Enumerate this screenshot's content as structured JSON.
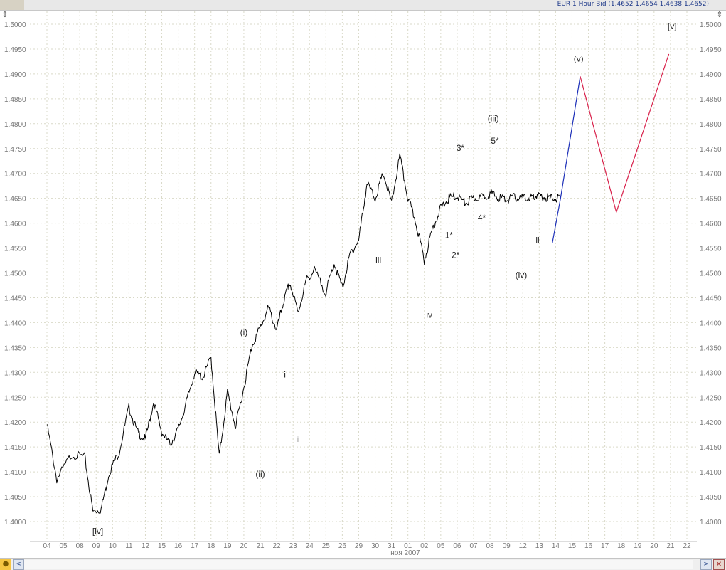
{
  "header": {
    "instrument_label": "EUR 1 Hour Bid (1.4652 1.4654 1.4638 1.4652)"
  },
  "colors": {
    "price": "#000000",
    "projection_blue": "#1c2fb8",
    "projection_red": "#d8204a",
    "grid": "#d9d9c8",
    "axis_text": "#777777"
  },
  "chart_data": {
    "type": "line",
    "title": "EUR 1 Hour Bid",
    "ylim": [
      1.4,
      1.5
    ],
    "y_ticks": [
      "1.5000",
      "1.4950",
      "1.4900",
      "1.4850",
      "1.4800",
      "1.4750",
      "1.4700",
      "1.4650",
      "1.4600",
      "1.4550",
      "1.4500",
      "1.4450",
      "1.4400",
      "1.4350",
      "1.4300",
      "1.4250",
      "1.4200",
      "1.4150",
      "1.4100",
      "1.4050",
      "1.4000"
    ],
    "x_ticks": [
      "04",
      "05",
      "08",
      "09",
      "10",
      "11",
      "12",
      "15",
      "16",
      "17",
      "18",
      "19",
      "20",
      "21",
      "22",
      "23",
      "24",
      "25",
      "26",
      "29",
      "30",
      "31",
      "01",
      "02",
      "05",
      "06",
      "07",
      "08",
      "09",
      "12",
      "13",
      "14",
      "15",
      "16",
      "17",
      "18",
      "19",
      "20",
      "21",
      "22"
    ],
    "x_sublabel": "ноя 2007",
    "grid": true,
    "price_series": {
      "name": "EUR",
      "x": [
        0,
        0.6,
        1.5,
        2.3,
        2.8,
        3.3,
        3.8,
        4.4,
        5.0,
        5.5,
        6.0,
        6.5,
        7.0,
        7.5,
        8.0,
        8.5,
        9.0,
        9.5,
        10.0,
        10.5,
        11.0,
        11.5,
        12.0,
        12.5,
        13.0,
        13.5,
        14.0,
        14.4,
        14.8,
        15.3,
        15.8,
        16.3,
        17.0,
        17.5,
        18.0,
        18.5,
        19.0,
        19.5,
        20.0,
        20.5,
        21.0,
        21.5,
        22.0,
        22.5,
        23.0,
        23.5,
        24.0,
        24.5,
        25.0,
        25.5,
        26.0,
        26.5,
        27.0,
        27.5,
        28.0,
        28.5,
        29.0,
        29.5,
        29.8,
        30.3,
        30.8,
        31.3
      ],
      "y": [
        1.4195,
        1.4085,
        1.4135,
        1.413,
        1.402,
        1.4025,
        1.41,
        1.414,
        1.423,
        1.418,
        1.4165,
        1.424,
        1.418,
        1.4155,
        1.4185,
        1.424,
        1.43,
        1.429,
        1.433,
        1.413,
        1.426,
        1.419,
        1.427,
        1.4355,
        1.439,
        1.443,
        1.4385,
        1.444,
        1.448,
        1.442,
        1.4485,
        1.4505,
        1.446,
        1.452,
        1.447,
        1.454,
        1.4565,
        1.468,
        1.465,
        1.47,
        1.464,
        1.4735,
        1.465,
        1.46,
        1.4525,
        1.459,
        1.463,
        1.465,
        1.4655,
        1.464,
        1.465,
        1.4652,
        1.466,
        1.4652,
        1.4648,
        1.4652,
        1.465,
        1.4652,
        1.4654,
        1.4652,
        1.465,
        1.4652
      ]
    },
    "projection_blue": {
      "name": "",
      "x": [
        30.8,
        31.3,
        32.5
      ],
      "y": [
        1.456,
        1.465,
        1.4895
      ]
    },
    "projection_red": {
      "name": "",
      "x": [
        32.5,
        34.7,
        37.9
      ],
      "y": [
        1.4895,
        1.4622,
        1.494
      ]
    },
    "wave_labels": [
      {
        "text": "[iv]",
        "x": 3.1,
        "y": 1.3975
      },
      {
        "text": "(i)",
        "x": 12.0,
        "y": 1.4375
      },
      {
        "text": "(ii)",
        "x": 13.0,
        "y": 1.409
      },
      {
        "text": "i",
        "x": 14.5,
        "y": 1.429
      },
      {
        "text": "ii",
        "x": 15.3,
        "y": 1.416
      },
      {
        "text": "iii",
        "x": 20.2,
        "y": 1.452
      },
      {
        "text": "iv",
        "x": 23.3,
        "y": 1.441
      },
      {
        "text": "1*",
        "x": 24.5,
        "y": 1.457
      },
      {
        "text": "2*",
        "x": 24.9,
        "y": 1.453
      },
      {
        "text": "3*",
        "x": 25.2,
        "y": 1.4745
      },
      {
        "text": "4*",
        "x": 26.5,
        "y": 1.4605
      },
      {
        "text": "(iii)",
        "x": 27.2,
        "y": 1.4805
      },
      {
        "text": "5*",
        "x": 27.3,
        "y": 1.476
      },
      {
        "text": "(iv)",
        "x": 28.9,
        "y": 1.449
      },
      {
        "text": "ii",
        "x": 29.9,
        "y": 1.456
      },
      {
        "text": "(v)",
        "x": 32.4,
        "y": 1.4925
      },
      {
        "text": "[v]",
        "x": 38.1,
        "y": 1.499
      }
    ]
  },
  "scrollbar": {
    "left_label": "<",
    "right_label": ">",
    "close_label": "✕"
  }
}
